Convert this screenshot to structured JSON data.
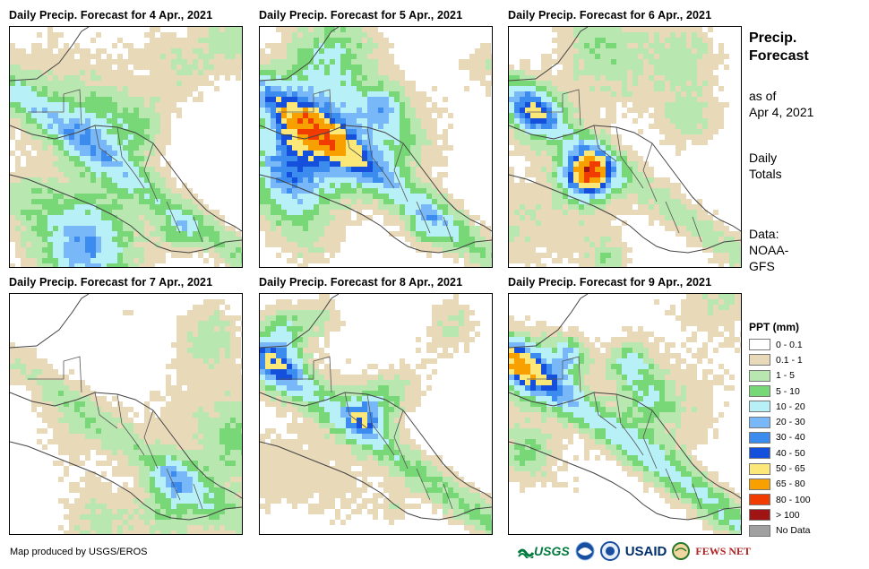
{
  "panels": [
    {
      "title": "Daily Precip. Forecast for 4 Apr., 2021",
      "seed": 11,
      "wet": 1.0
    },
    {
      "title": "Daily Precip. Forecast for 5 Apr., 2021",
      "seed": 23,
      "wet": 1.05
    },
    {
      "title": "Daily Precip. Forecast for 6 Apr., 2021",
      "seed": 37,
      "wet": 0.85
    },
    {
      "title": "Daily Precip. Forecast for 7 Apr., 2021",
      "seed": 41,
      "wet": 0.7
    },
    {
      "title": "Daily Precip. Forecast for 8 Apr., 2021",
      "seed": 53,
      "wet": 1.1
    },
    {
      "title": "Daily Precip. Forecast for 9 Apr., 2021",
      "seed": 67,
      "wet": 1.3
    }
  ],
  "side": {
    "title_line1": "Precip.",
    "title_line2": "Forecast",
    "asof_line1": "as of",
    "asof_line2": "Apr 4, 2021",
    "totals_line1": "Daily",
    "totals_line2": "Totals",
    "data_line1": "Data:",
    "data_line2": "NOAA-",
    "data_line3": "GFS"
  },
  "legend": {
    "title": "PPT (mm)",
    "items": [
      {
        "label": "0 - 0.1",
        "color": "#ffffff"
      },
      {
        "label": "0.1 - 1",
        "color": "#e8d9b8"
      },
      {
        "label": "1 - 5",
        "color": "#b8e8b0"
      },
      {
        "label": "5 - 10",
        "color": "#78d878"
      },
      {
        "label": "10 - 20",
        "color": "#b8f0f8"
      },
      {
        "label": "20 - 30",
        "color": "#78b8f8"
      },
      {
        "label": "30 - 40",
        "color": "#3c8cf0"
      },
      {
        "label": "40 - 50",
        "color": "#1450dc"
      },
      {
        "label": "50 - 65",
        "color": "#fce878"
      },
      {
        "label": "65 - 80",
        "color": "#f8a000"
      },
      {
        "label": "80 - 100",
        "color": "#f03c00"
      },
      {
        "label": "> 100",
        "color": "#a01414"
      },
      {
        "label": "No Data",
        "color": "#a0a0a0"
      }
    ]
  },
  "credit": "Map produced by USGS/EROS",
  "logos": {
    "usgs": "USGS",
    "usaid": "USAID",
    "fewsnet": "FEWS NET"
  }
}
